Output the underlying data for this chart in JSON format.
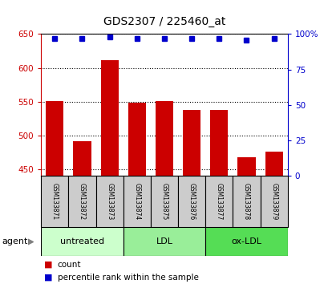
{
  "title": "GDS2307 / 225460_at",
  "samples": [
    "GSM133871",
    "GSM133872",
    "GSM133873",
    "GSM133874",
    "GSM133875",
    "GSM133876",
    "GSM133877",
    "GSM133878",
    "GSM133879"
  ],
  "counts": [
    551,
    491,
    612,
    548,
    551,
    538,
    538,
    468,
    476
  ],
  "percentile_ranks": [
    97,
    97,
    98,
    97,
    97,
    97,
    97,
    96,
    97
  ],
  "ylim_left": [
    440,
    650
  ],
  "ylim_right": [
    0,
    100
  ],
  "yticks_left": [
    450,
    500,
    550,
    600,
    650
  ],
  "yticks_right": [
    0,
    25,
    50,
    75,
    100
  ],
  "ytick_right_labels": [
    "0",
    "25",
    "50",
    "75",
    "100%"
  ],
  "bar_color": "#cc0000",
  "dot_color": "#0000cc",
  "bar_bottom": 440,
  "groups": [
    {
      "label": "untreated",
      "start": 0,
      "end": 3,
      "color": "#ccffcc"
    },
    {
      "label": "LDL",
      "start": 3,
      "end": 6,
      "color": "#99ee99"
    },
    {
      "label": "ox-LDL",
      "start": 6,
      "end": 9,
      "color": "#55dd55"
    }
  ],
  "agent_label": "agent",
  "legend_count_label": "count",
  "legend_pct_label": "percentile rank within the sample",
  "axis_left_color": "#cc0000",
  "axis_right_color": "#0000cc",
  "sample_box_color": "#cccccc",
  "background_color": "#ffffff",
  "bar_width": 0.65,
  "dot_size": 5,
  "title_fontsize": 10,
  "tick_fontsize": 7.5,
  "sample_fontsize": 5.5,
  "group_fontsize": 8,
  "legend_fontsize": 7.5
}
